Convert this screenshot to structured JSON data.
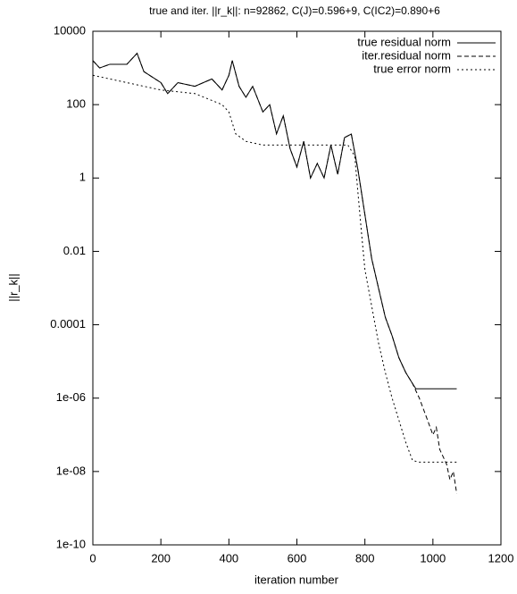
{
  "chart_data": {
    "type": "line",
    "title": "true and iter. ||r_k||: n=92862, C(J)=0.596+9, C(IC2)=0.890+6",
    "x_label": "iteration number",
    "y_label": "||r_k||",
    "log_y": true,
    "legend": "top-right",
    "xlim": [
      0,
      1200
    ],
    "xticks": [
      0,
      200,
      400,
      600,
      800,
      1000,
      1200
    ],
    "ylim": [
      1e-10,
      10000
    ],
    "yticks": [
      10000,
      100,
      1,
      0.01,
      0.0001,
      {
        "value": 1e-06,
        "label": "1e-06"
      },
      {
        "value": 1e-08,
        "label": "1e-08"
      },
      {
        "value": 1e-10,
        "label": "1e-10"
      }
    ],
    "series": [
      {
        "name": "true residual norm",
        "color": "#000000",
        "dash": "solid",
        "x": [
          0,
          20,
          50,
          100,
          130,
          150,
          200,
          220,
          250,
          300,
          350,
          380,
          400,
          410,
          430,
          450,
          470,
          500,
          520,
          540,
          560,
          580,
          600,
          620,
          640,
          660,
          680,
          700,
          720,
          740,
          760,
          780,
          800,
          820,
          840,
          860,
          880,
          900,
          920,
          940,
          950,
          1000,
          1070
        ],
        "values": [
          1585,
          1000,
          1259,
          1259,
          2512,
          794,
          398,
          200,
          398,
          316,
          501,
          251,
          631,
          1585,
          316,
          158,
          316,
          63,
          100,
          16,
          50,
          6.3,
          2,
          10,
          1,
          2.5,
          1,
          7.9,
          1.26,
          12.6,
          15.8,
          1.58,
          0.1,
          0.0063,
          0.001,
          0.00016,
          5e-05,
          1.26e-05,
          5e-06,
          2.5e-06,
          1.8e-06,
          1.8e-06,
          1.8e-06
        ]
      },
      {
        "name": "iter.residual norm",
        "color": "#000000",
        "dash": "dashed",
        "x": [
          0,
          20,
          50,
          100,
          130,
          150,
          200,
          220,
          250,
          300,
          350,
          380,
          400,
          410,
          430,
          450,
          470,
          500,
          520,
          540,
          560,
          580,
          600,
          620,
          640,
          660,
          680,
          700,
          720,
          740,
          760,
          780,
          800,
          820,
          840,
          860,
          880,
          900,
          920,
          940,
          960,
          980,
          1000,
          1010,
          1020,
          1040,
          1050,
          1060,
          1070
        ],
        "values": [
          1585,
          1000,
          1259,
          1259,
          2512,
          794,
          398,
          200,
          398,
          316,
          501,
          251,
          631,
          1585,
          316,
          158,
          316,
          63,
          100,
          16,
          50,
          6.3,
          2,
          10,
          1,
          2.5,
          1,
          7.9,
          1.26,
          12.6,
          15.8,
          1.58,
          0.1,
          0.0063,
          0.001,
          0.00016,
          5e-05,
          1.26e-05,
          5e-06,
          2.5e-06,
          1e-06,
          3.2e-07,
          1e-07,
          1.6e-07,
          4e-08,
          1.6e-08,
          6e-09,
          1e-08,
          2.5e-09
        ]
      },
      {
        "name": "true error norm",
        "color": "#000000",
        "dash": "dotted",
        "x": [
          0,
          100,
          200,
          300,
          380,
          400,
          420,
          450,
          500,
          560,
          750,
          770,
          790,
          800,
          820,
          840,
          860,
          880,
          900,
          920,
          940,
          960,
          1070
        ],
        "values": [
          631,
          398,
          251,
          200,
          100,
          63,
          16,
          10,
          7.9,
          7.9,
          7.9,
          4,
          0.032,
          0.0032,
          0.00032,
          3.2e-05,
          5e-06,
          1e-06,
          2.5e-07,
          6.3e-08,
          2e-08,
          1.8e-08,
          1.8e-08
        ]
      }
    ]
  }
}
